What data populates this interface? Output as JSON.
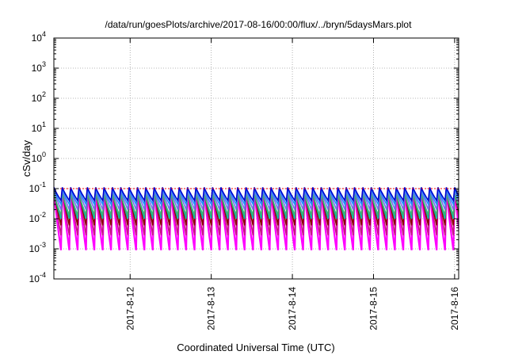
{
  "chart_data": {
    "type": "line",
    "title": "/data/run/goesPlots/archive/2017-08-16/00:00/flux/../bryn/5daysMars.plot",
    "xlabel": "Coordinated Universal Time (UTC)",
    "ylabel": "cSv/day",
    "yscale": "log",
    "ylim": [
      0.0001,
      10000
    ],
    "xlim_days": [
      11.06,
      16.05
    ],
    "y_ticks": [
      {
        "mantissa": "10",
        "exp": "-4",
        "value": 0.0001
      },
      {
        "mantissa": "10",
        "exp": "-3",
        "value": 0.001
      },
      {
        "mantissa": "10",
        "exp": "-2",
        "value": 0.01
      },
      {
        "mantissa": "10",
        "exp": "-1",
        "value": 0.1
      },
      {
        "mantissa": "10",
        "exp": "0",
        "value": 1
      },
      {
        "mantissa": "10",
        "exp": "1",
        "value": 10
      },
      {
        "mantissa": "10",
        "exp": "2",
        "value": 100
      },
      {
        "mantissa": "10",
        "exp": "3",
        "value": 1000
      },
      {
        "mantissa": "10",
        "exp": "4",
        "value": 10000
      }
    ],
    "x_ticks": [
      {
        "label": "2017-8-12",
        "day": 12
      },
      {
        "label": "2017-8-13",
        "day": 13
      },
      {
        "label": "2017-8-14",
        "day": 14
      },
      {
        "label": "2017-8-15",
        "day": 15
      },
      {
        "label": "2017-8-16",
        "day": 16
      }
    ],
    "grid": true,
    "period_hours": 2.47,
    "series": [
      {
        "color": "#ff00ff",
        "peak": 0.095,
        "trough": 0.0009
      },
      {
        "color": "#c71585",
        "peak": 0.1,
        "trough": 0.0028
      },
      {
        "color": "#8b0000",
        "peak": 0.1,
        "trough": 0.006
      },
      {
        "color": "#00bfa5",
        "peak": 0.08,
        "trough": 0.01
      },
      {
        "color": "#3cb371",
        "peak": 0.07,
        "trough": 0.013
      },
      {
        "color": "#7b68ee",
        "peak": 0.095,
        "trough": 0.02
      },
      {
        "color": "#1e90ff",
        "peak": 0.1,
        "trough": 0.03
      },
      {
        "color": "#0000cd",
        "peak": 0.11,
        "trough": 0.04
      }
    ],
    "reference_line": {
      "color": "#ff0000",
      "value": 0.1
    }
  }
}
